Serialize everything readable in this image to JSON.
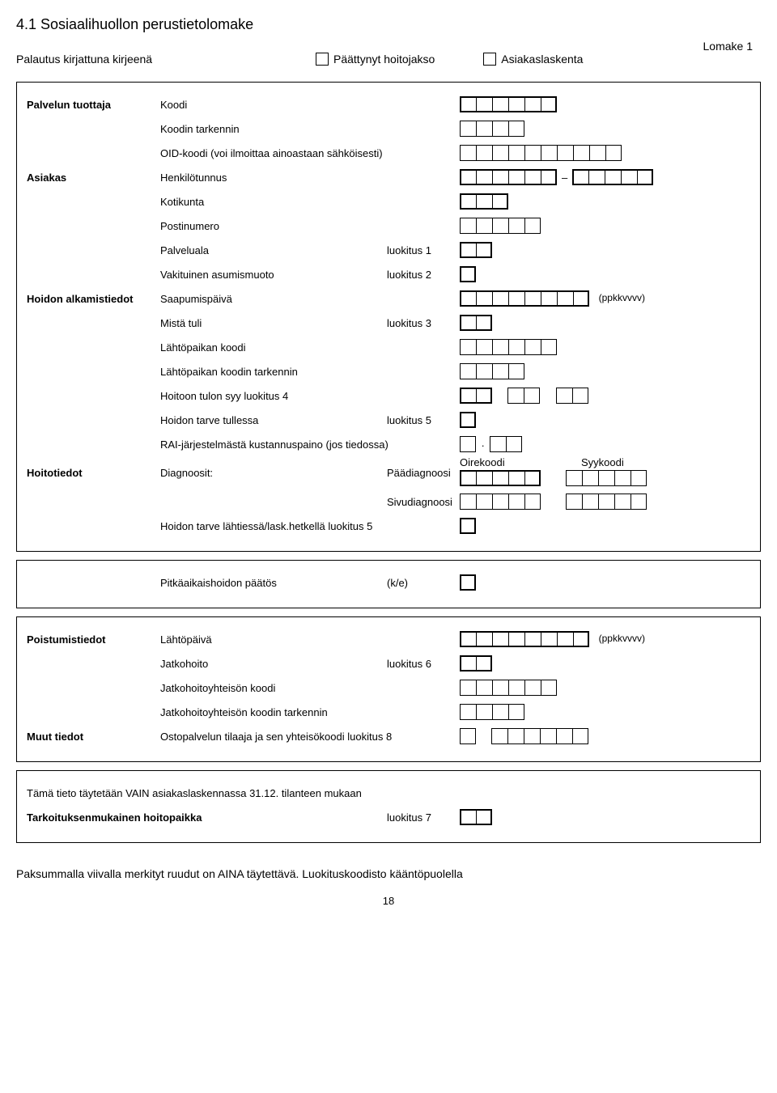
{
  "header": {
    "title": "4.1 Sosiaalihuollon perustietolomake",
    "return_line": "Palautus kirjattuna kirjeenä",
    "ended_care": "Päättynyt hoitojakso",
    "lomake": "Lomake 1",
    "client_count": "Asiakaslaskenta"
  },
  "s1": {
    "provider": "Palvelun tuottaja",
    "koodi": "Koodi",
    "koodin_tarkennin": "Koodin tarkennin",
    "oid": "OID-koodi (voi ilmoittaa ainoastaan sähköisesti)",
    "asiakas": "Asiakas",
    "hetu": "Henkilötunnus",
    "kotikunta": "Kotikunta",
    "postinumero": "Postinumero",
    "palveluala": "Palveluala",
    "luok1": "luokitus 1",
    "asumismuoto": "Vakituinen asumismuoto",
    "luok2": "luokitus 2",
    "hoidon_alk": "Hoidon alkamistiedot",
    "saapumis": "Saapumispäivä",
    "ppkkvvvv": "(ppkkvvvv)",
    "mista": "Mistä tuli",
    "luok3": "luokitus 3",
    "lahto_koodi": "Lähtöpaikan koodi",
    "lahto_tark": "Lähtöpaikan koodin tarkennin",
    "hoitoon_tulon_syy": "Hoitoon tulon syy luokitus 4",
    "tarve_tull": "Hoidon tarve tullessa",
    "luok5": "luokitus 5",
    "rai": "RAI-järjestelmästä kustannuspaino (jos tiedossa)",
    "hoitotiedot": "Hoitotiedot",
    "diag": "Diagnoosit:",
    "oirekoodi": "Oirekoodi",
    "syykoodi": "Syykoodi",
    "paad": "Päädiagnoosi",
    "sivud": "Sivudiagnoosi",
    "tarve_laht": "Hoidon tarve lähtiessä/lask.hetkellä luokitus 5"
  },
  "s2": {
    "pitka": "Pitkäaikaishoidon päätös",
    "ke": "(k/e)"
  },
  "s3": {
    "poist": "Poistumistiedot",
    "lahtopaiva": "Lähtöpäivä",
    "ppkkvvvv": "(ppkkvvvv)",
    "jatkohoito": "Jatkohoito",
    "luok6": "luokitus 6",
    "jatko_koodi": "Jatkohoitoyhteisön koodi",
    "jatko_tark": "Jatkohoitoyhteisön koodin tarkennin",
    "muut": "Muut tiedot",
    "osto": "Ostopalvelun tilaaja ja sen yhteisökoodi  luokitus 8"
  },
  "s4": {
    "line1": "Tämä tieto täytetään VAIN asiakaslaskennassa 31.12. tilanteen mukaan",
    "tark": "Tarkoituksenmukainen hoitopaikka",
    "luok7": "luokitus 7"
  },
  "footer": "Paksummalla viivalla merkityt ruudut on AINA täytettävä. Luokituskoodisto kääntöpuolella",
  "page": "18",
  "boxes": {
    "n1": 1,
    "n2": 2,
    "n3": 3,
    "n4": 4,
    "n5": 5,
    "n6": 6,
    "n7": 7,
    "n8": 8,
    "n10": 10
  }
}
